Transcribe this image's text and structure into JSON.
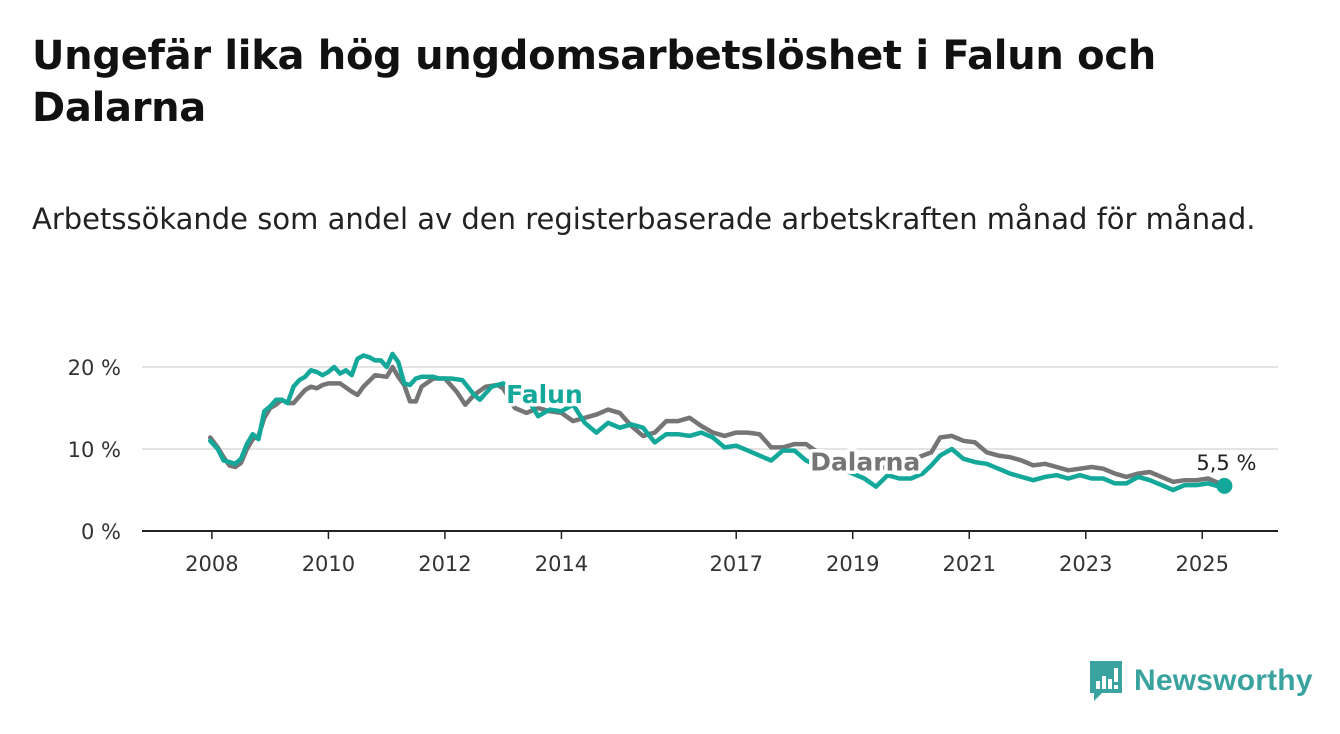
{
  "header": {
    "title": "Ungefär lika hög ungdomsarbetslöshet i Falun och Dalarna",
    "subtitle": "Arbetssökande som andel av den registerbaserade arbetskraften månad för månad."
  },
  "footer": {
    "brand": "Newsworthy"
  },
  "colors": {
    "falun": "#14a89a",
    "dalarna": "#757575",
    "grid": "#dcdcdc",
    "axis": "#222222",
    "brand": "#3aa3a0"
  },
  "icons": {
    "logo": "newsworthy-logo-icon"
  },
  "chart_data": {
    "type": "line",
    "title": "Ungefär lika hög ungdomsarbetslöshet i Falun och Dalarna",
    "subtitle": "Arbetssökande som andel av den registerbaserade arbetskraften månad för månad.",
    "xlabel": "",
    "ylabel": "",
    "x_unit": "year (decimal)",
    "y_unit": "%",
    "xlim": [
      2006.8,
      2026.3
    ],
    "ylim": [
      0,
      20
    ],
    "x_ticks": [
      2008,
      2010,
      2012,
      2014,
      2017,
      2019,
      2021,
      2023,
      2025
    ],
    "x_tick_labels": [
      "2008",
      "2010",
      "2012",
      "2014",
      "2017",
      "2019",
      "2021",
      "2023",
      "2025"
    ],
    "y_ticks": [
      0,
      10,
      20
    ],
    "y_tick_labels": [
      "0 %",
      "10 %",
      "20 %"
    ],
    "grid": true,
    "legend": "inline labels on lines",
    "end_label": "5,5 %",
    "series": [
      {
        "name": "Dalarna",
        "color": "#757575",
        "x": [
          2007.97,
          2008.1,
          2008.2,
          2008.3,
          2008.4,
          2008.5,
          2008.6,
          2008.7,
          2008.8,
          2008.9,
          2009.0,
          2009.1,
          2009.2,
          2009.3,
          2009.4,
          2009.5,
          2009.6,
          2009.7,
          2009.8,
          2009.9,
          2010.0,
          2010.2,
          2010.4,
          2010.5,
          2010.6,
          2010.8,
          2011.0,
          2011.1,
          2011.2,
          2011.3,
          2011.4,
          2011.5,
          2011.6,
          2011.8,
          2012.0,
          2012.2,
          2012.35,
          2012.5,
          2012.7,
          2012.9,
          2013.0,
          2013.2,
          2013.4,
          2013.6,
          2013.8,
          2014.0,
          2014.2,
          2014.4,
          2014.6,
          2014.8,
          2015.0,
          2015.2,
          2015.4,
          2015.6,
          2015.8,
          2016.0,
          2016.2,
          2016.4,
          2016.6,
          2016.8,
          2017.0,
          2017.2,
          2017.4,
          2017.6,
          2017.8,
          2018.0,
          2018.2,
          2018.4,
          2018.6,
          2018.8,
          2019.0,
          2019.2,
          2019.4,
          2019.6,
          2019.8,
          2020.0,
          2020.2,
          2020.35,
          2020.5,
          2020.7,
          2020.9,
          2021.1,
          2021.3,
          2021.5,
          2021.7,
          2021.9,
          2022.1,
          2022.3,
          2022.5,
          2022.7,
          2022.9,
          2023.1,
          2023.3,
          2023.5,
          2023.7,
          2023.9,
          2024.1,
          2024.3,
          2024.5,
          2024.7,
          2024.9,
          2025.1,
          2025.3
        ],
        "values": [
          11.4,
          10.2,
          9.0,
          8.0,
          7.8,
          8.3,
          10.0,
          11.2,
          11.6,
          13.8,
          15.0,
          15.4,
          16.0,
          15.6,
          15.6,
          16.4,
          17.2,
          17.6,
          17.4,
          17.8,
          18.0,
          18.0,
          17.0,
          16.6,
          17.6,
          19.0,
          18.8,
          20.0,
          18.8,
          17.8,
          15.8,
          15.8,
          17.6,
          18.6,
          18.6,
          17.0,
          15.4,
          16.6,
          17.6,
          17.8,
          17.4,
          15.0,
          14.4,
          15.0,
          14.6,
          14.4,
          13.4,
          13.8,
          14.2,
          14.8,
          14.4,
          12.8,
          11.6,
          12.0,
          13.4,
          13.4,
          13.8,
          12.8,
          12.0,
          11.6,
          12.0,
          12.0,
          11.8,
          10.2,
          10.2,
          10.6,
          10.6,
          9.6,
          8.8,
          8.4,
          8.2,
          7.6,
          7.6,
          7.8,
          8.2,
          8.6,
          9.2,
          9.6,
          11.4,
          11.6,
          11.0,
          10.8,
          9.6,
          9.2,
          9.0,
          8.6,
          8.0,
          8.2,
          7.8,
          7.4,
          7.6,
          7.8,
          7.6,
          7.0,
          6.6,
          7.0,
          7.2,
          6.6,
          6.0,
          6.2,
          6.2,
          6.4,
          5.8
        ]
      },
      {
        "name": "Falun",
        "color": "#14a89a",
        "x": [
          2007.97,
          2008.1,
          2008.2,
          2008.3,
          2008.4,
          2008.5,
          2008.6,
          2008.7,
          2008.8,
          2008.9,
          2009.0,
          2009.1,
          2009.2,
          2009.3,
          2009.4,
          2009.5,
          2009.6,
          2009.7,
          2009.8,
          2009.9,
          2010.0,
          2010.1,
          2010.2,
          2010.3,
          2010.4,
          2010.5,
          2010.6,
          2010.7,
          2010.8,
          2010.9,
          2011.0,
          2011.1,
          2011.2,
          2011.3,
          2011.4,
          2011.5,
          2011.6,
          2011.8,
          2011.9,
          2012.1,
          2012.3,
          2012.5,
          2012.6,
          2012.8,
          2013.0,
          2013.2,
          2013.4,
          2013.6,
          2013.8,
          2014.0,
          2014.2,
          2014.4,
          2014.6,
          2014.8,
          2015.0,
          2015.2,
          2015.4,
          2015.6,
          2015.8,
          2016.0,
          2016.2,
          2016.4,
          2016.6,
          2016.8,
          2017.0,
          2017.2,
          2017.4,
          2017.6,
          2017.8,
          2018.0,
          2018.2,
          2018.4,
          2018.6,
          2018.8,
          2019.0,
          2019.2,
          2019.4,
          2019.6,
          2019.8,
          2020.0,
          2020.2,
          2020.35,
          2020.5,
          2020.7,
          2020.9,
          2021.1,
          2021.3,
          2021.5,
          2021.7,
          2021.9,
          2022.1,
          2022.3,
          2022.5,
          2022.7,
          2022.9,
          2023.1,
          2023.3,
          2023.5,
          2023.7,
          2023.9,
          2024.1,
          2024.3,
          2024.5,
          2024.7,
          2024.9,
          2025.1,
          2025.3,
          2025.38
        ],
        "values": [
          11.0,
          10.0,
          8.6,
          8.4,
          8.2,
          8.8,
          10.6,
          11.8,
          11.2,
          14.6,
          15.2,
          16.0,
          16.0,
          15.6,
          17.6,
          18.4,
          18.8,
          19.6,
          19.4,
          19.0,
          19.4,
          20.0,
          19.2,
          19.6,
          19.0,
          21.0,
          21.4,
          21.2,
          20.8,
          20.8,
          20.0,
          21.6,
          20.6,
          18.0,
          17.8,
          18.6,
          18.8,
          18.8,
          18.6,
          18.6,
          18.4,
          16.6,
          16.0,
          17.6,
          18.0,
          16.8,
          16.4,
          14.0,
          14.8,
          14.6,
          15.4,
          13.2,
          12.0,
          13.2,
          12.6,
          13.0,
          12.6,
          10.8,
          11.8,
          11.8,
          11.6,
          12.0,
          11.4,
          10.2,
          10.4,
          9.8,
          9.2,
          8.6,
          9.8,
          9.8,
          8.6,
          8.0,
          7.6,
          7.6,
          7.0,
          6.4,
          5.4,
          6.8,
          6.4,
          6.4,
          7.0,
          8.0,
          9.2,
          10.0,
          8.8,
          8.4,
          8.2,
          7.6,
          7.0,
          6.6,
          6.2,
          6.6,
          6.8,
          6.4,
          6.8,
          6.4,
          6.4,
          5.8,
          5.8,
          6.6,
          6.2,
          5.6,
          5.0,
          5.6,
          5.6,
          5.8,
          5.4,
          5.5
        ]
      }
    ]
  }
}
